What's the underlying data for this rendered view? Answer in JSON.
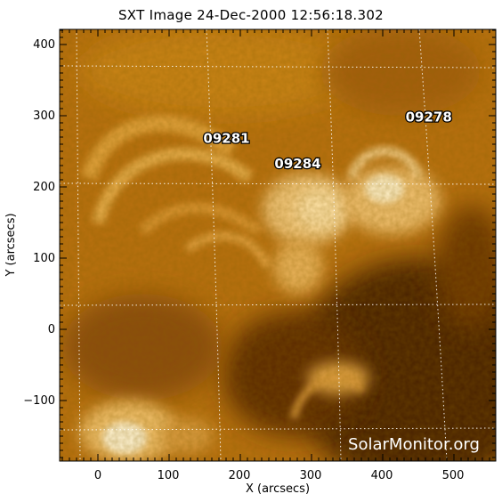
{
  "title": "SXT Image 24-Dec-2000 12:56:18.302",
  "x_axis": {
    "label": "X (arcsecs)",
    "ticks": [
      "0",
      "100",
      "200",
      "300",
      "400",
      "500"
    ]
  },
  "y_axis": {
    "label": "Y (arcsecs)",
    "ticks": [
      "400",
      "300",
      "200",
      "100",
      "0",
      "−100"
    ]
  },
  "regions": [
    {
      "id": "09281",
      "x": 148,
      "y": 262
    },
    {
      "id": "09284",
      "x": 248,
      "y": 226
    },
    {
      "id": "09278",
      "x": 432,
      "y": 292
    }
  ],
  "watermark": "SolarMonitor.org",
  "colors": {
    "sun_dark": "#3a1c00",
    "sun_mid": "#b86a10",
    "sun_bright": "#ffe9b0"
  }
}
